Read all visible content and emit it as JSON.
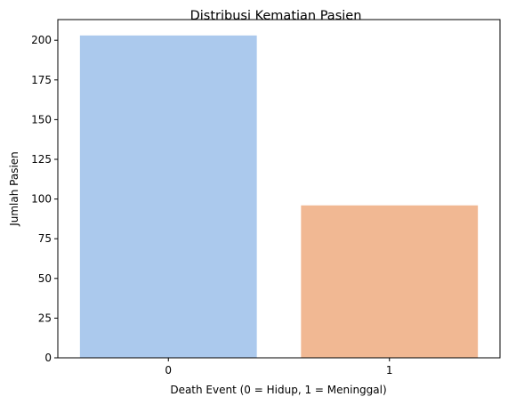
{
  "chart_data": {
    "type": "bar",
    "title": "Distribusi Kematian Pasien",
    "xlabel": "Death Event (0 = Hidup, 1 = Meninggal)",
    "ylabel": "Jumlah Pasien",
    "categories": [
      "0",
      "1"
    ],
    "values": [
      203,
      96
    ],
    "ylim": [
      0,
      213
    ],
    "yticks": [
      0,
      25,
      50,
      75,
      100,
      125,
      150,
      175,
      200
    ],
    "ytick_labels": [
      "0",
      "25",
      "50",
      "75",
      "100",
      "125",
      "150",
      "175",
      "200"
    ],
    "colors": [
      "#abc9ed",
      "#f1b893"
    ],
    "grid": false,
    "legend": "none"
  }
}
